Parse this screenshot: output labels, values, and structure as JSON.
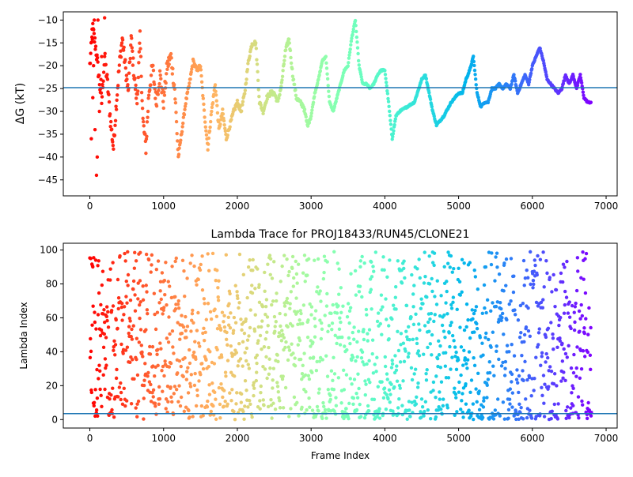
{
  "chart_data": [
    {
      "type": "scatter",
      "title": "",
      "xlabel": "",
      "ylabel": "ΔG (kT)",
      "xlim": [
        -360,
        7150
      ],
      "ylim": [
        -48.5,
        -8.2
      ],
      "xticks": [
        0,
        1000,
        2000,
        3000,
        4000,
        5000,
        6000,
        7000
      ],
      "yticks": [
        -45,
        -40,
        -35,
        -30,
        -25,
        -20,
        -15,
        -10
      ],
      "hline": -24.8,
      "hline_color": "#1f77b4",
      "colormap": "rainbow (red at start → violet at end)",
      "trace_anchors": [
        [
          0,
          -20
        ],
        [
          40,
          -12
        ],
        [
          80,
          -16
        ],
        [
          120,
          -22
        ],
        [
          160,
          -28
        ],
        [
          200,
          -18
        ],
        [
          240,
          -24
        ],
        [
          280,
          -32
        ],
        [
          320,
          -38
        ],
        [
          360,
          -28
        ],
        [
          400,
          -20
        ],
        [
          440,
          -14
        ],
        [
          480,
          -20
        ],
        [
          520,
          -26
        ],
        [
          560,
          -14
        ],
        [
          600,
          -22
        ],
        [
          640,
          -28
        ],
        [
          680,
          -14
        ],
        [
          720,
          -32
        ],
        [
          760,
          -38
        ],
        [
          800,
          -26
        ],
        [
          850,
          -20
        ],
        [
          900,
          -28
        ],
        [
          950,
          -22
        ],
        [
          1000,
          -28
        ],
        [
          1050,
          -20
        ],
        [
          1100,
          -18
        ],
        [
          1150,
          -25
        ],
        [
          1200,
          -40
        ],
        [
          1250,
          -34
        ],
        [
          1300,
          -28
        ],
        [
          1350,
          -24
        ],
        [
          1400,
          -19
        ],
        [
          1450,
          -21
        ],
        [
          1500,
          -20
        ],
        [
          1550,
          -30
        ],
        [
          1600,
          -38
        ],
        [
          1650,
          -30
        ],
        [
          1700,
          -24
        ],
        [
          1750,
          -34
        ],
        [
          1800,
          -30
        ],
        [
          1850,
          -36
        ],
        [
          1900,
          -33
        ],
        [
          1950,
          -30
        ],
        [
          2000,
          -28
        ],
        [
          2050,
          -30
        ],
        [
          2100,
          -26
        ],
        [
          2150,
          -19
        ],
        [
          2200,
          -15
        ],
        [
          2250,
          -15
        ],
        [
          2300,
          -28
        ],
        [
          2350,
          -30
        ],
        [
          2400,
          -27
        ],
        [
          2450,
          -26
        ],
        [
          2500,
          -26
        ],
        [
          2550,
          -28
        ],
        [
          2600,
          -24
        ],
        [
          2650,
          -17
        ],
        [
          2700,
          -14
        ],
        [
          2750,
          -22
        ],
        [
          2800,
          -27
        ],
        [
          2850,
          -28
        ],
        [
          2900,
          -29
        ],
        [
          2950,
          -33
        ],
        [
          3000,
          -31
        ],
        [
          3050,
          -26
        ],
        [
          3100,
          -23
        ],
        [
          3150,
          -19
        ],
        [
          3200,
          -18
        ],
        [
          3250,
          -28
        ],
        [
          3300,
          -30
        ],
        [
          3350,
          -27
        ],
        [
          3400,
          -24
        ],
        [
          3450,
          -21
        ],
        [
          3500,
          -20
        ],
        [
          3550,
          -14
        ],
        [
          3600,
          -10
        ],
        [
          3650,
          -20
        ],
        [
          3700,
          -24
        ],
        [
          3750,
          -24
        ],
        [
          3800,
          -25
        ],
        [
          3850,
          -24
        ],
        [
          3900,
          -22
        ],
        [
          3950,
          -21
        ],
        [
          4000,
          -21
        ],
        [
          4050,
          -28
        ],
        [
          4100,
          -36
        ],
        [
          4150,
          -31
        ],
        [
          4200,
          -30
        ],
        [
          4300,
          -29
        ],
        [
          4400,
          -28
        ],
        [
          4500,
          -23
        ],
        [
          4550,
          -22
        ],
        [
          4600,
          -26
        ],
        [
          4650,
          -30
        ],
        [
          4700,
          -33
        ],
        [
          4800,
          -31
        ],
        [
          4900,
          -28
        ],
        [
          4950,
          -27
        ],
        [
          5000,
          -26
        ],
        [
          5050,
          -26
        ],
        [
          5100,
          -23
        ],
        [
          5150,
          -21
        ],
        [
          5200,
          -18
        ],
        [
          5250,
          -26
        ],
        [
          5300,
          -29
        ],
        [
          5350,
          -28
        ],
        [
          5400,
          -28
        ],
        [
          5450,
          -25
        ],
        [
          5500,
          -25
        ],
        [
          5550,
          -24
        ],
        [
          5600,
          -25
        ],
        [
          5650,
          -24
        ],
        [
          5700,
          -25
        ],
        [
          5750,
          -22
        ],
        [
          5800,
          -26
        ],
        [
          5850,
          -24
        ],
        [
          5900,
          -22
        ],
        [
          5950,
          -24
        ],
        [
          6000,
          -20
        ],
        [
          6050,
          -18
        ],
        [
          6100,
          -16
        ],
        [
          6150,
          -19
        ],
        [
          6200,
          -23
        ],
        [
          6250,
          -24
        ],
        [
          6300,
          -25
        ],
        [
          6350,
          -26
        ],
        [
          6400,
          -25
        ],
        [
          6450,
          -22
        ],
        [
          6500,
          -24
        ],
        [
          6550,
          -22
        ],
        [
          6600,
          -25
        ],
        [
          6650,
          -22
        ],
        [
          6700,
          -27
        ],
        [
          6750,
          -28
        ],
        [
          6800,
          -28
        ]
      ]
    },
    {
      "type": "scatter",
      "title": "Lambda Trace for PROJ18433/RUN45/CLONE21",
      "xlabel": "Frame Index",
      "ylabel": "Lambda Index",
      "xlim": [
        -360,
        7150
      ],
      "ylim": [
        -5,
        104
      ],
      "xticks": [
        0,
        1000,
        2000,
        3000,
        4000,
        5000,
        6000,
        7000
      ],
      "yticks": [
        0,
        20,
        40,
        60,
        80,
        100
      ],
      "hline": 3.5,
      "hline_color": "#1f77b4",
      "colormap": "rainbow (red at start → violet at end)",
      "frames": 6800,
      "lambda_max": 99,
      "bands": [
        [
          100,
          180
        ],
        [
          270,
          340
        ],
        [
          420,
          520
        ],
        [
          600,
          680
        ],
        [
          760,
          860
        ],
        [
          960,
          1030
        ],
        [
          1100,
          1160
        ],
        [
          1260,
          1330
        ],
        [
          1450,
          1560
        ],
        [
          1660,
          1760
        ],
        [
          1900,
          2000
        ],
        [
          2150,
          2280
        ],
        [
          2400,
          2460
        ],
        [
          2550,
          2620
        ],
        [
          2730,
          2830
        ],
        [
          2950,
          3000
        ],
        [
          3070,
          3140
        ],
        [
          3350,
          3420
        ],
        [
          3600,
          3700
        ],
        [
          3800,
          3850
        ],
        [
          3980,
          4100
        ],
        [
          4200,
          4280
        ],
        [
          4380,
          4460
        ],
        [
          4540,
          4680
        ],
        [
          4800,
          4950
        ],
        [
          5000,
          5120
        ],
        [
          5200,
          5250
        ],
        [
          5340,
          5420
        ],
        [
          5500,
          5640
        ],
        [
          5700,
          5760
        ],
        [
          5880,
          5940
        ],
        [
          6000,
          6080
        ],
        [
          6120,
          6240
        ],
        [
          6350,
          6450
        ],
        [
          6600,
          6720
        ]
      ]
    }
  ]
}
